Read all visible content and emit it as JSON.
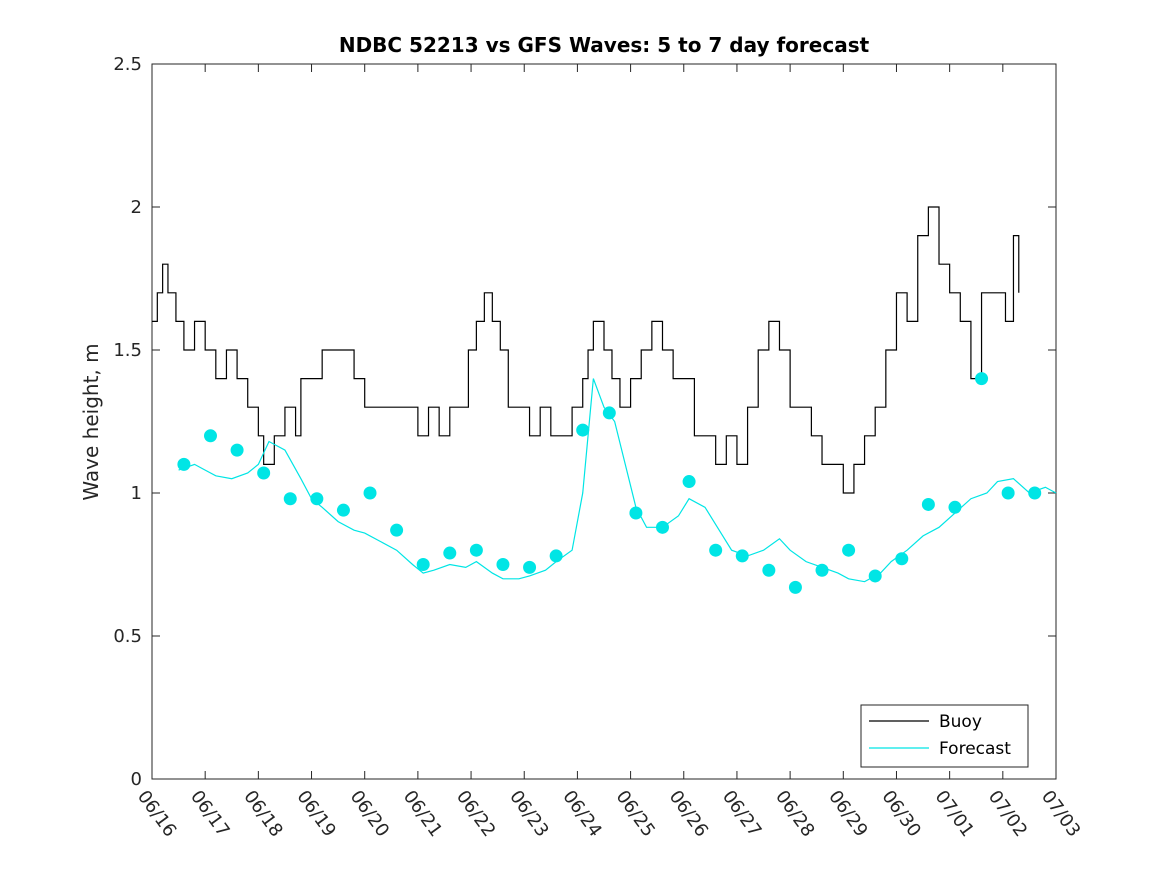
{
  "chart_data": {
    "type": "line",
    "title": "NDBC 52213 vs GFS Waves: 5 to 7 day forecast",
    "xlabel": "",
    "ylabel": "Wave height, m",
    "xlim": [
      "06/16",
      "07/03"
    ],
    "ylim": [
      0,
      2.5
    ],
    "yticks": [
      "0",
      "0.5",
      "1",
      "1.5",
      "2",
      "2.5"
    ],
    "xticks": [
      "06/16",
      "06/17",
      "06/18",
      "06/19",
      "06/20",
      "06/21",
      "06/22",
      "06/23",
      "06/24",
      "06/25",
      "06/26",
      "06/27",
      "06/28",
      "06/29",
      "06/30",
      "07/01",
      "07/02",
      "07/03"
    ],
    "legend": {
      "placement": "bottom-right",
      "entries": [
        {
          "label": "Buoy",
          "color": "#000000"
        },
        {
          "label": "Forecast",
          "color": "#00e5e5"
        }
      ]
    },
    "grid": false,
    "series": [
      {
        "name": "Buoy",
        "color": "#000000",
        "style": "step",
        "x_days_since_06_16": [
          0.0,
          0.1,
          0.2,
          0.3,
          0.45,
          0.6,
          0.8,
          1.0,
          1.2,
          1.4,
          1.6,
          1.8,
          2.0,
          2.1,
          2.3,
          2.5,
          2.7,
          2.8,
          3.0,
          3.2,
          3.4,
          3.6,
          3.8,
          4.0,
          4.2,
          4.4,
          4.6,
          4.8,
          5.0,
          5.2,
          5.4,
          5.6,
          5.8,
          5.95,
          6.1,
          6.25,
          6.4,
          6.55,
          6.7,
          6.9,
          7.1,
          7.3,
          7.5,
          7.7,
          7.9,
          8.1,
          8.2,
          8.3,
          8.4,
          8.5,
          8.65,
          8.8,
          9.0,
          9.2,
          9.4,
          9.6,
          9.8,
          10.0,
          10.2,
          10.4,
          10.6,
          10.8,
          11.0,
          11.2,
          11.4,
          11.6,
          11.8,
          12.0,
          12.2,
          12.4,
          12.6,
          12.8,
          13.0,
          13.2,
          13.4,
          13.6,
          13.8,
          14.0,
          14.2,
          14.4,
          14.6,
          14.8,
          15.0,
          15.2,
          15.4,
          15.6,
          15.8,
          15.95,
          16.05,
          16.2,
          16.3
        ],
        "y": [
          1.6,
          1.7,
          1.8,
          1.7,
          1.6,
          1.5,
          1.6,
          1.5,
          1.4,
          1.5,
          1.4,
          1.3,
          1.2,
          1.1,
          1.2,
          1.3,
          1.2,
          1.4,
          1.4,
          1.5,
          1.5,
          1.5,
          1.4,
          1.3,
          1.3,
          1.3,
          1.3,
          1.3,
          1.2,
          1.3,
          1.2,
          1.3,
          1.3,
          1.5,
          1.6,
          1.7,
          1.6,
          1.5,
          1.3,
          1.3,
          1.2,
          1.3,
          1.2,
          1.2,
          1.3,
          1.4,
          1.5,
          1.6,
          1.6,
          1.5,
          1.4,
          1.3,
          1.4,
          1.5,
          1.6,
          1.5,
          1.4,
          1.4,
          1.2,
          1.2,
          1.1,
          1.2,
          1.1,
          1.3,
          1.5,
          1.6,
          1.5,
          1.3,
          1.3,
          1.2,
          1.1,
          1.1,
          1.0,
          1.1,
          1.2,
          1.3,
          1.5,
          1.7,
          1.6,
          1.9,
          2.0,
          1.8,
          1.7,
          1.6,
          1.4,
          1.7,
          1.7,
          1.7,
          1.6,
          1.9,
          1.7
        ]
      },
      {
        "name": "Forecast",
        "color": "#00e5e5",
        "style": "line",
        "x_days_since_06_16": [
          0.5,
          0.8,
          1.0,
          1.2,
          1.5,
          1.8,
          2.0,
          2.2,
          2.5,
          2.8,
          3.0,
          3.2,
          3.5,
          3.8,
          4.0,
          4.3,
          4.6,
          4.9,
          5.1,
          5.3,
          5.6,
          5.9,
          6.1,
          6.4,
          6.6,
          6.9,
          7.1,
          7.4,
          7.6,
          7.9,
          8.1,
          8.3,
          8.5,
          8.7,
          8.9,
          9.1,
          9.3,
          9.6,
          9.9,
          10.1,
          10.4,
          10.7,
          10.9,
          11.2,
          11.5,
          11.8,
          12.0,
          12.3,
          12.6,
          12.9,
          13.1,
          13.4,
          13.7,
          13.9,
          14.2,
          14.5,
          14.8,
          15.1,
          15.4,
          15.7,
          15.9,
          16.2,
          16.5,
          16.8,
          17.0
        ],
        "y": [
          1.08,
          1.1,
          1.08,
          1.06,
          1.05,
          1.07,
          1.1,
          1.18,
          1.15,
          1.05,
          0.98,
          0.95,
          0.9,
          0.87,
          0.86,
          0.83,
          0.8,
          0.75,
          0.72,
          0.73,
          0.75,
          0.74,
          0.76,
          0.72,
          0.7,
          0.7,
          0.71,
          0.73,
          0.76,
          0.8,
          1.0,
          1.4,
          1.3,
          1.25,
          1.1,
          0.95,
          0.88,
          0.88,
          0.92,
          0.98,
          0.95,
          0.86,
          0.8,
          0.78,
          0.8,
          0.84,
          0.8,
          0.76,
          0.74,
          0.72,
          0.7,
          0.69,
          0.72,
          0.76,
          0.8,
          0.85,
          0.88,
          0.93,
          0.98,
          1.0,
          1.04,
          1.05,
          1.0,
          1.02,
          1.0
        ]
      }
    ],
    "forecast_markers": {
      "x_days_since_06_16": [
        0.6,
        1.1,
        1.6,
        2.1,
        2.6,
        3.1,
        3.6,
        4.1,
        4.6,
        5.1,
        5.6,
        6.1,
        6.6,
        7.1,
        7.6,
        8.1,
        8.6,
        9.1,
        9.6,
        10.1,
        10.6,
        11.1,
        11.6,
        12.1,
        12.6,
        13.1,
        13.6,
        14.1,
        14.6,
        15.1,
        15.6,
        16.1,
        16.6
      ],
      "y": [
        1.1,
        1.2,
        1.15,
        1.07,
        0.98,
        0.98,
        0.94,
        1.0,
        0.87,
        0.75,
        0.79,
        0.8,
        0.75,
        0.74,
        0.78,
        1.22,
        1.28,
        0.93,
        0.88,
        1.04,
        0.8,
        0.78,
        0.73,
        0.67,
        0.73,
        0.8,
        0.71,
        0.77,
        0.96,
        0.95,
        1.4,
        1.0,
        1.0
      ]
    }
  }
}
